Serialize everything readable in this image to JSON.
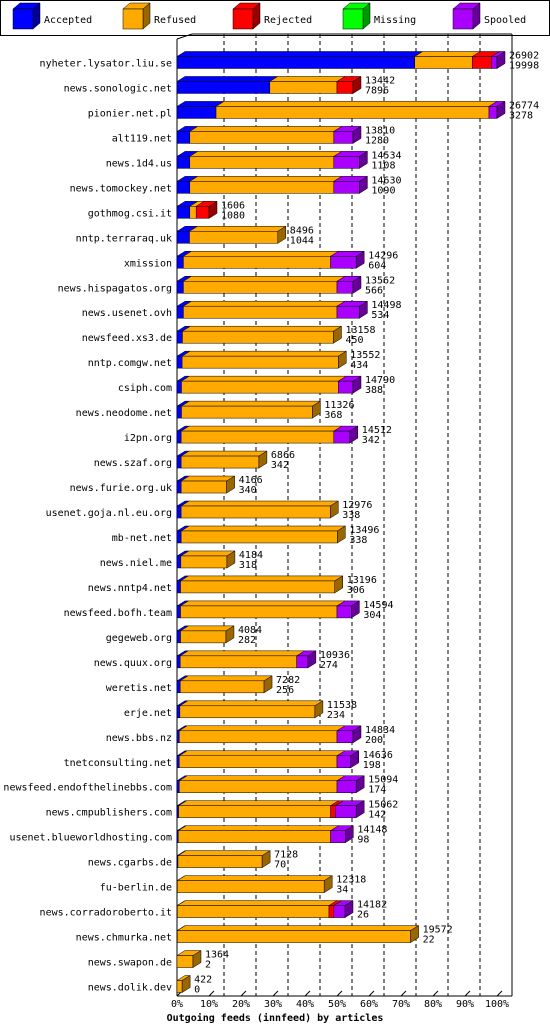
{
  "chart_data": {
    "type": "bar",
    "orientation": "horizontal",
    "stacked": true,
    "title": "Outgoing feeds (innfeed) by articles",
    "xlim": [
      0,
      100
    ],
    "x_ticks": [
      "0%",
      "10%",
      "20%",
      "30%",
      "40%",
      "50%",
      "60%",
      "70%",
      "80%",
      "90%",
      "100%"
    ],
    "legend_position": "top",
    "grid": true,
    "series": [
      {
        "name": "Accepted",
        "color": "#0000ff"
      },
      {
        "name": "Refused",
        "color": "#ffaa00"
      },
      {
        "name": "Rejected",
        "color": "#ff0000"
      },
      {
        "name": "Missing",
        "color": "#00ff00"
      },
      {
        "name": "Spooled",
        "color": "#aa00ff"
      }
    ],
    "rows": [
      {
        "name": "nyheter.lysator.liu.se",
        "total": "26902",
        "accepted_label": "19998",
        "pct": [
          74.3,
          18,
          6,
          0,
          1.7
        ]
      },
      {
        "name": "news.sonologic.net",
        "total": "13442",
        "accepted_label": "7896",
        "pct": [
          29,
          21,
          5,
          0,
          0
        ]
      },
      {
        "name": "pionier.net.pl",
        "total": "26774",
        "accepted_label": "3278",
        "pct": [
          12.2,
          85.3,
          0,
          0,
          2.5
        ]
      },
      {
        "name": "alt119.net",
        "total": "13810",
        "accepted_label": "1280",
        "pct": [
          4,
          45,
          0,
          0,
          6
        ]
      },
      {
        "name": "news.1d4.us",
        "total": "14534",
        "accepted_label": "1108",
        "pct": [
          4,
          45,
          0,
          0,
          8
        ]
      },
      {
        "name": "news.tomockey.net",
        "total": "14630",
        "accepted_label": "1090",
        "pct": [
          4,
          45,
          0,
          0,
          8
        ]
      },
      {
        "name": "gothmog.csi.it",
        "total": "1606",
        "accepted_label": "1080",
        "pct": [
          4,
          2,
          4,
          0,
          0
        ]
      },
      {
        "name": "nntp.terraraq.uk",
        "total": "8496",
        "accepted_label": "1044",
        "pct": [
          3.9,
          27.6,
          0,
          0,
          0
        ]
      },
      {
        "name": "xmission",
        "total": "14296",
        "accepted_label": "604",
        "pct": [
          2,
          46,
          0,
          0,
          8
        ]
      },
      {
        "name": "news.hispagatos.org",
        "total": "13562",
        "accepted_label": "566",
        "pct": [
          2,
          48,
          0,
          0,
          5
        ]
      },
      {
        "name": "news.usenet.ovh",
        "total": "14498",
        "accepted_label": "534",
        "pct": [
          2,
          48,
          0,
          0,
          7
        ]
      },
      {
        "name": "newsfeed.xs3.de",
        "total": "13158",
        "accepted_label": "450",
        "pct": [
          1.7,
          47.2,
          0,
          0,
          0
        ]
      },
      {
        "name": "nntp.comgw.net",
        "total": "13552",
        "accepted_label": "434",
        "pct": [
          1.6,
          48.8,
          0,
          0,
          0
        ]
      },
      {
        "name": "csiph.com",
        "total": "14790",
        "accepted_label": "388",
        "pct": [
          1.4,
          49,
          0,
          0,
          4.6
        ]
      },
      {
        "name": "news.neodome.net",
        "total": "11326",
        "accepted_label": "368",
        "pct": [
          1.4,
          40.9,
          0,
          0,
          0
        ]
      },
      {
        "name": "i2pn.org",
        "total": "14512",
        "accepted_label": "342",
        "pct": [
          1.3,
          47.7,
          0,
          0,
          5
        ]
      },
      {
        "name": "news.szaf.org",
        "total": "6866",
        "accepted_label": "342",
        "pct": [
          1.3,
          24.3,
          0,
          0,
          0
        ]
      },
      {
        "name": "news.furie.org.uk",
        "total": "4166",
        "accepted_label": "340",
        "pct": [
          1.3,
          14.2,
          0,
          0,
          0
        ]
      },
      {
        "name": "usenet.goja.nl.eu.org",
        "total": "12976",
        "accepted_label": "338",
        "pct": [
          1.3,
          46.6,
          0,
          0,
          0
        ]
      },
      {
        "name": "mb-net.net",
        "total": "13496",
        "accepted_label": "338",
        "pct": [
          1.3,
          48.8,
          0,
          0,
          0
        ]
      },
      {
        "name": "news.niel.me",
        "total": "4184",
        "accepted_label": "318",
        "pct": [
          1.2,
          14.4,
          0,
          0,
          0
        ]
      },
      {
        "name": "news.nntp4.net",
        "total": "13196",
        "accepted_label": "306",
        "pct": [
          1.1,
          48.2,
          0,
          0,
          0
        ]
      },
      {
        "name": "newsfeed.bofh.team",
        "total": "14594",
        "accepted_label": "304",
        "pct": [
          1.1,
          48.9,
          0,
          0,
          4.5
        ]
      },
      {
        "name": "gegeweb.org",
        "total": "4084",
        "accepted_label": "282",
        "pct": [
          1.1,
          14.2,
          0,
          0,
          0
        ]
      },
      {
        "name": "news.quux.org",
        "total": "10936",
        "accepted_label": "274",
        "pct": [
          1,
          36.4,
          0,
          0,
          3.5
        ]
      },
      {
        "name": "weretis.net",
        "total": "7282",
        "accepted_label": "256",
        "pct": [
          1,
          26.2,
          0,
          0,
          0
        ]
      },
      {
        "name": "erje.net",
        "total": "11538",
        "accepted_label": "234",
        "pct": [
          0.9,
          42.2,
          0,
          0,
          0
        ]
      },
      {
        "name": "news.bbs.nz",
        "total": "14834",
        "accepted_label": "200",
        "pct": [
          0.7,
          49.3,
          0,
          0,
          5
        ]
      },
      {
        "name": "tnetconsulting.net",
        "total": "14636",
        "accepted_label": "198",
        "pct": [
          0.7,
          49.3,
          0,
          0,
          4.3
        ]
      },
      {
        "name": "newsfeed.endofthelinebbs.com",
        "total": "15094",
        "accepted_label": "174",
        "pct": [
          0.7,
          49.3,
          0,
          0,
          6
        ]
      },
      {
        "name": "news.cmpublishers.com",
        "total": "15062",
        "accepted_label": "142",
        "pct": [
          0.5,
          47.5,
          1.5,
          0,
          6.5
        ]
      },
      {
        "name": "usenet.blueworldhosting.com",
        "total": "14148",
        "accepted_label": "98",
        "pct": [
          0.4,
          47.6,
          0,
          0,
          4.6
        ]
      },
      {
        "name": "news.cgarbs.de",
        "total": "7128",
        "accepted_label": "70",
        "pct": [
          0.3,
          26.3,
          0,
          0,
          0
        ]
      },
      {
        "name": "fu-berlin.de",
        "total": "12318",
        "accepted_label": "34",
        "pct": [
          0.1,
          45.9,
          0,
          0,
          0
        ]
      },
      {
        "name": "news.corradoroberto.it",
        "total": "14182",
        "accepted_label": "26",
        "pct": [
          0.1,
          47.4,
          1.5,
          0,
          3.5
        ]
      },
      {
        "name": "news.chmurka.net",
        "total": "19572",
        "accepted_label": "22",
        "pct": [
          0.1,
          72.9,
          0,
          0,
          0
        ]
      },
      {
        "name": "news.swapon.de",
        "total": "1364",
        "accepted_label": "2",
        "pct": [
          0,
          5,
          0,
          0,
          0
        ]
      },
      {
        "name": "news.dolik.dev",
        "total": "422",
        "accepted_label": "0",
        "pct": [
          0,
          1.6,
          0,
          0,
          0
        ]
      }
    ]
  }
}
